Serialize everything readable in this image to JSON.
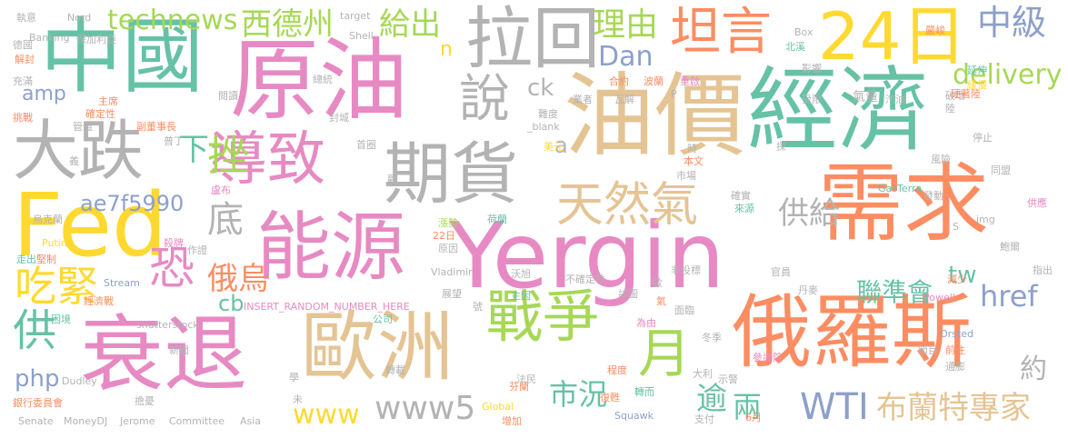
{
  "colors": {
    "green": "#66c2a5",
    "orange": "#fc8d62",
    "blue": "#8da0cb",
    "pink": "#e78ac3",
    "lime": "#a6d854",
    "yellow": "#ffd92f",
    "tan": "#e5c494",
    "gray": "#b3b3b3"
  },
  "words": [
    {
      "text": "Yergin",
      "color": "pink"
    },
    {
      "text": "油價",
      "color": "tan"
    },
    {
      "text": "經濟",
      "color": "green"
    },
    {
      "text": "原油",
      "color": "pink"
    },
    {
      "text": "中國",
      "color": "green"
    },
    {
      "text": "衰退",
      "color": "pink"
    },
    {
      "text": "歐洲",
      "color": "tan"
    },
    {
      "text": "俄羅斯",
      "color": "orange"
    },
    {
      "text": "需求",
      "color": "orange"
    },
    {
      "text": "能源",
      "color": "pink"
    },
    {
      "text": "Fed",
      "color": "yellow"
    },
    {
      "text": "大跌",
      "color": "gray"
    },
    {
      "text": "拉回",
      "color": "gray"
    },
    {
      "text": "期貨",
      "color": "gray"
    },
    {
      "text": "導致",
      "color": "pink"
    },
    {
      "text": "24日",
      "color": "yellow"
    },
    {
      "text": "坦言",
      "color": "orange"
    },
    {
      "text": "戰爭",
      "color": "lime"
    },
    {
      "text": "天然氣",
      "color": "tan"
    },
    {
      "text": "月",
      "color": "lime"
    },
    {
      "text": "說",
      "color": "gray"
    },
    {
      "text": "西德州",
      "color": "lime"
    },
    {
      "text": "technews",
      "color": "lime"
    },
    {
      "text": "給出",
      "color": "lime"
    },
    {
      "text": "理由",
      "color": "lime"
    },
    {
      "text": "中級",
      "color": "blue"
    },
    {
      "text": "delivery",
      "color": "lime"
    },
    {
      "text": "Dan",
      "color": "blue"
    },
    {
      "text": "挫",
      "color": "lime"
    },
    {
      "text": "下",
      "color": "green"
    },
    {
      "text": "恐",
      "color": "pink"
    },
    {
      "text": "吃緊",
      "color": "yellow"
    },
    {
      "text": "俄烏",
      "color": "orange"
    },
    {
      "text": "ae7f5990",
      "color": "blue"
    },
    {
      "text": "供",
      "color": "green"
    },
    {
      "text": "底",
      "color": "gray"
    },
    {
      "text": "供給",
      "color": "gray"
    },
    {
      "text": "href",
      "color": "blue"
    },
    {
      "text": "聯準會",
      "color": "green"
    },
    {
      "text": "tw",
      "color": "green"
    },
    {
      "text": "cb",
      "color": "green"
    },
    {
      "text": "php",
      "color": "blue"
    },
    {
      "text": "www",
      "color": "yellow"
    },
    {
      "text": "www5",
      "color": "gray"
    },
    {
      "text": "市況",
      "color": "green"
    },
    {
      "text": "逾",
      "color": "green"
    },
    {
      "text": "兩",
      "color": "green"
    },
    {
      "text": "WTI",
      "color": "blue"
    },
    {
      "text": "布蘭特專家",
      "color": "tan"
    },
    {
      "text": "約",
      "color": "gray"
    },
    {
      "text": "amp",
      "color": "blue"
    },
    {
      "text": "ck",
      "color": "gray"
    },
    {
      "text": "a",
      "color": "gray"
    },
    {
      "text": "n",
      "color": "yellow"
    },
    {
      "text": "INSERT_RANDOM_NUMBER_HERE",
      "color": "pink"
    },
    {
      "text": "Putin",
      "color": "yellow"
    },
    {
      "text": "Stream",
      "color": "blue"
    },
    {
      "text": "Vladimir",
      "color": "gray"
    },
    {
      "text": "shutterstock",
      "color": "gray"
    },
    {
      "text": "Dudley",
      "color": "gray"
    },
    {
      "text": "Senate",
      "color": "gray"
    },
    {
      "text": "MoneyDJ",
      "color": "gray"
    },
    {
      "text": "Jerome",
      "color": "gray"
    },
    {
      "text": "Committee",
      "color": "gray"
    },
    {
      "text": "Asia",
      "color": "gray"
    },
    {
      "text": "Global",
      "color": "yellow"
    },
    {
      "text": "Squawk",
      "color": "blue"
    },
    {
      "text": "Powell",
      "color": "pink"
    },
    {
      "text": "Orsted",
      "color": "blue"
    },
    {
      "text": "GasTerra",
      "color": "green"
    },
    {
      "text": "img",
      "color": "gray"
    },
    {
      "text": "Box",
      "color": "gray"
    },
    {
      "text": "target",
      "color": "gray"
    },
    {
      "text": "Shell",
      "color": "gray"
    },
    {
      "text": "Nord",
      "color": "gray"
    },
    {
      "text": "Banking",
      "color": "gray"
    },
    {
      "text": "_blank",
      "color": "gray"
    },
    {
      "text": "執意",
      "color": "gray"
    },
    {
      "text": "德國",
      "color": "gray"
    },
    {
      "text": "解封",
      "color": "orange"
    },
    {
      "text": "充滿",
      "color": "gray"
    },
    {
      "text": "保加利亞",
      "color": "gray"
    },
    {
      "text": "總統",
      "color": "gray"
    },
    {
      "text": "主席",
      "color": "orange"
    },
    {
      "text": "確定性",
      "color": "orange"
    },
    {
      "text": "閱讀",
      "color": "gray"
    },
    {
      "text": "封城",
      "color": "gray"
    },
    {
      "text": "挑戰",
      "color": "orange"
    },
    {
      "text": "管道",
      "color": "gray"
    },
    {
      "text": "副董事長",
      "color": "orange"
    },
    {
      "text": "普丁",
      "color": "gray"
    },
    {
      "text": "義",
      "color": "gray"
    },
    {
      "text": "烏克蘭",
      "color": "gray"
    },
    {
      "text": "盧布",
      "color": "pink"
    },
    {
      "text": "首圈",
      "color": "gray"
    },
    {
      "text": "歡",
      "color": "gray"
    },
    {
      "text": "業者",
      "color": "gray"
    },
    {
      "text": "難度",
      "color": "gray"
    },
    {
      "text": "合約",
      "color": "orange"
    },
    {
      "text": "波蘭",
      "color": "orange"
    },
    {
      "text": "重啟",
      "color": "pink"
    },
    {
      "text": "美元",
      "color": "yellow"
    },
    {
      "text": "北溪",
      "color": "green"
    },
    {
      "text": "影響",
      "color": "gray"
    },
    {
      "text": "受限",
      "color": "gray"
    },
    {
      "text": "嚴峻",
      "color": "orange"
    },
    {
      "text": "延伸",
      "color": "green"
    },
    {
      "text": "緩慢",
      "color": "yellow"
    },
    {
      "text": "氣量",
      "color": "gray"
    },
    {
      "text": "汽油",
      "color": "gray"
    },
    {
      "text": "陸",
      "color": "gray"
    },
    {
      "text": "破壞",
      "color": "gray"
    },
    {
      "text": "停止",
      "color": "gray"
    },
    {
      "text": "風險",
      "color": "gray"
    },
    {
      "text": "同盟",
      "color": "gray"
    },
    {
      "text": "發動",
      "color": "gray"
    },
    {
      "text": "確實",
      "color": "gray"
    },
    {
      "text": "來源",
      "color": "green"
    },
    {
      "text": "供應",
      "color": "pink"
    },
    {
      "text": "鮑爾",
      "color": "gray"
    },
    {
      "text": "指出",
      "color": "gray"
    },
    {
      "text": "減少",
      "color": "orange"
    },
    {
      "text": "丹麥",
      "color": "gray"
    },
    {
      "text": "官員",
      "color": "gray"
    },
    {
      "text": "試圖",
      "color": "gray"
    },
    {
      "text": "主因",
      "color": "green"
    },
    {
      "text": "不確定性",
      "color": "gray"
    },
    {
      "text": "沃旭",
      "color": "gray"
    },
    {
      "text": "荷蘭",
      "color": "green"
    },
    {
      "text": "漲勢",
      "color": "lime"
    },
    {
      "text": "原因",
      "color": "gray"
    },
    {
      "text": "殺牌",
      "color": "pink"
    },
    {
      "text": "作證",
      "color": "gray"
    },
    {
      "text": "走出",
      "color": "green"
    },
    {
      "text": "堅制",
      "color": "orange"
    },
    {
      "text": "經濟戰",
      "color": "orange"
    },
    {
      "text": "困境",
      "color": "green"
    },
    {
      "text": "公司",
      "color": "green"
    },
    {
      "text": "展望",
      "color": "gray"
    },
    {
      "text": "號",
      "color": "gray"
    },
    {
      "text": "面臨",
      "color": "gray"
    },
    {
      "text": "為由",
      "color": "pink"
    },
    {
      "text": "冬季",
      "color": "gray"
    },
    {
      "text": "參議院",
      "color": "pink"
    },
    {
      "text": "大利",
      "color": "gray"
    },
    {
      "text": "示警",
      "color": "gray"
    },
    {
      "text": "芬蘭",
      "color": "orange"
    },
    {
      "text": "法民",
      "color": "gray"
    },
    {
      "text": "程度",
      "color": "orange"
    },
    {
      "text": "復甦",
      "color": "orange"
    },
    {
      "text": "轉而",
      "color": "green"
    },
    {
      "text": "擔憂",
      "color": "gray"
    },
    {
      "text": "銀行委員會",
      "color": "orange"
    },
    {
      "text": "新聞",
      "color": "gray"
    },
    {
      "text": "增加",
      "color": "orange"
    },
    {
      "text": "支付",
      "color": "gray"
    },
    {
      "text": "6月",
      "color": "orange"
    },
    {
      "text": "節目",
      "color": "gray"
    },
    {
      "text": "通膨",
      "color": "gray"
    },
    {
      "text": "前往",
      "color": "orange"
    },
    {
      "text": "時",
      "color": "gray"
    },
    {
      "text": "市場",
      "color": "gray"
    },
    {
      "text": "本文",
      "color": "orange"
    },
    {
      "text": "歐",
      "color": "gray"
    },
    {
      "text": "22日",
      "color": "orange"
    },
    {
      "text": "非投標",
      "color": "gray"
    },
    {
      "text": "氣",
      "color": "orange"
    },
    {
      "text": "瓦解",
      "color": "gray"
    },
    {
      "text": "轉載",
      "color": "gray"
    },
    {
      "text": "學",
      "color": "gray"
    },
    {
      "text": "P",
      "color": "gray"
    },
    {
      "text": "S",
      "color": "gray"
    },
    {
      "text": "未",
      "color": "gray"
    },
    {
      "text": "探",
      "color": "gray"
    },
    {
      "text": "硬著陸",
      "color": "orange"
    }
  ]
}
